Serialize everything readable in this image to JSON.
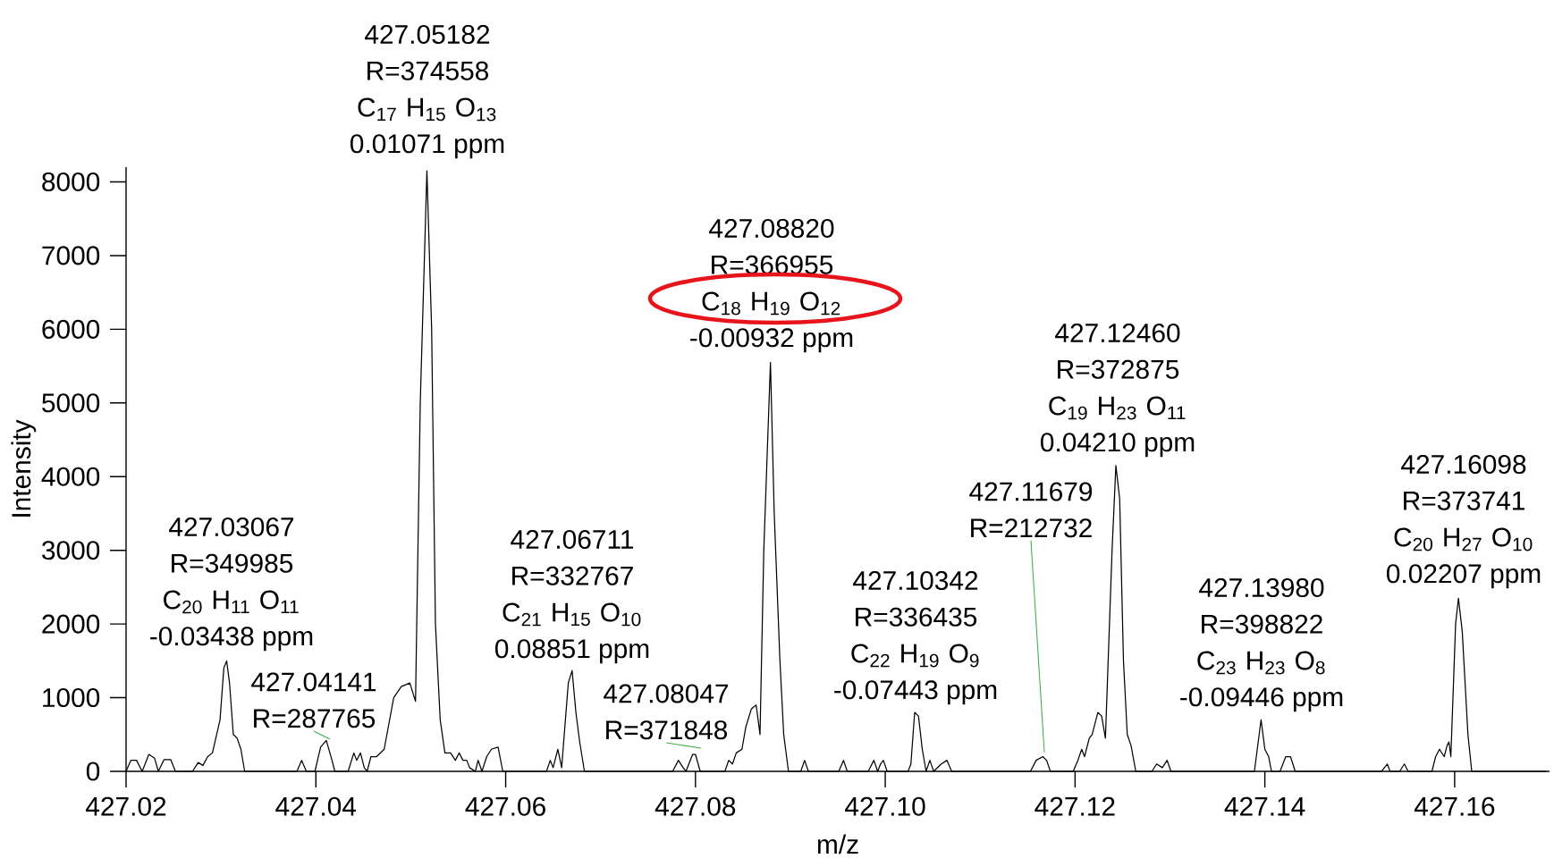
{
  "chart_data": {
    "type": "line",
    "xlabel": "m/z",
    "ylabel": "Intensity",
    "color": "#000000",
    "xlim": [
      427.02,
      427.17
    ],
    "ylim": [
      0,
      8200
    ],
    "xticks": [
      {
        "value": 427.02,
        "label": "427.02"
      },
      {
        "value": 427.04,
        "label": "427.04"
      },
      {
        "value": 427.06,
        "label": "427.06"
      },
      {
        "value": 427.08,
        "label": "427.08"
      },
      {
        "value": 427.1,
        "label": "427.10"
      },
      {
        "value": 427.12,
        "label": "427.12"
      },
      {
        "value": 427.14,
        "label": "427.14"
      },
      {
        "value": 427.16,
        "label": "427.16"
      }
    ],
    "yticks": [
      0,
      1000,
      2000,
      3000,
      4000,
      5000,
      6000,
      7000,
      8000
    ],
    "x": [
      427.02,
      427.0205,
      427.0211,
      427.0217,
      427.0224,
      427.023,
      427.0234,
      427.024,
      427.0247,
      427.0252,
      427.027,
      427.0276,
      427.0281,
      427.0286,
      427.0291,
      427.0299,
      427.0303,
      427.0306,
      427.0309,
      427.0313,
      427.0317,
      427.0321,
      427.0325,
      427.038,
      427.0385,
      427.039,
      427.0399,
      427.0405,
      427.0411,
      427.0417,
      427.042,
      427.0434,
      427.044,
      427.0443,
      427.0447,
      427.0451,
      427.0454,
      427.0458,
      427.0464,
      427.0472,
      427.0482,
      427.049,
      427.0499,
      427.0505,
      427.051,
      427.0517,
      427.0522,
      427.0526,
      427.0531,
      427.0536,
      427.0542,
      427.0547,
      427.0551,
      427.0555,
      427.0559,
      427.0562,
      427.0568,
      427.0571,
      427.0575,
      427.058,
      427.0585,
      427.0592,
      427.0597,
      427.0643,
      427.0647,
      427.065,
      427.0655,
      427.0659,
      427.0666,
      427.067,
      427.0674,
      427.0678,
      427.0683,
      427.0776,
      427.0782,
      427.0787,
      427.079,
      427.0797,
      427.08,
      427.0805,
      427.0831,
      427.0835,
      427.0839,
      427.0843,
      427.0849,
      427.0853,
      427.0859,
      427.0864,
      427.0868,
      427.0872,
      427.0879,
      427.0883,
      427.0889,
      427.0893,
      427.0898,
      427.0911,
      427.0915,
      427.0919,
      427.0951,
      427.0956,
      427.096,
      427.0982,
      427.0988,
      427.0992,
      427.0995,
      427.0998,
      427.1002,
      427.1024,
      427.1027,
      427.1031,
      427.1035,
      427.1039,
      427.1043,
      427.1047,
      427.1051,
      427.1059,
      427.1065,
      427.107,
      427.1153,
      427.1159,
      427.1166,
      427.117,
      427.1174,
      427.1198,
      427.1203,
      427.1207,
      427.121,
      427.1215,
      427.1218,
      427.1224,
      427.1228,
      427.1232,
      427.1239,
      427.1243,
      427.1247,
      427.1251,
      427.1255,
      427.1259,
      427.1264,
      427.1281,
      427.1286,
      427.1292,
      427.1297,
      427.1301,
      427.1389,
      427.1392,
      427.1396,
      427.14,
      427.1404,
      427.1407,
      427.1416,
      427.1422,
      427.1427,
      427.1432,
      427.1523,
      427.1529,
      427.1532,
      427.1542,
      427.1547,
      427.1551,
      427.1576,
      427.158,
      427.1584,
      427.1589,
      427.1592,
      427.1594,
      427.1596,
      427.1601,
      427.1604,
      427.1608,
      427.1614,
      427.1618,
      427.1696
    ],
    "values": [
      0,
      150,
      150,
      0,
      230,
      180,
      0,
      160,
      160,
      0,
      0,
      120,
      80,
      200,
      250,
      700,
      1400,
      1500,
      1200,
      500,
      450,
      300,
      0,
      0,
      150,
      0,
      0,
      330,
      420,
      150,
      0,
      0,
      250,
      150,
      250,
      50,
      0,
      200,
      200,
      300,
      1000,
      1150,
      1200,
      950,
      5000,
      8150,
      6000,
      2000,
      700,
      250,
      250,
      150,
      250,
      150,
      150,
      50,
      0,
      150,
      0,
      200,
      300,
      330,
      0,
      0,
      150,
      50,
      300,
      50,
      1200,
      1370,
      800,
      400,
      0,
      0,
      150,
      50,
      0,
      230,
      230,
      0,
      0,
      150,
      100,
      250,
      300,
      600,
      850,
      900,
      500,
      3000,
      5550,
      3500,
      1500,
      500,
      0,
      0,
      150,
      0,
      0,
      150,
      0,
      0,
      150,
      0,
      100,
      150,
      0,
      0,
      100,
      800,
      750,
      300,
      0,
      150,
      0,
      100,
      150,
      0,
      0,
      150,
      200,
      150,
      0,
      0,
      150,
      300,
      200,
      450,
      500,
      800,
      750,
      450,
      3000,
      4150,
      3700,
      1500,
      500,
      350,
      0,
      0,
      100,
      50,
      150,
      0,
      0,
      300,
      700,
      300,
      200,
      0,
      0,
      200,
      200,
      0,
      0,
      100,
      0,
      0,
      100,
      0,
      0,
      200,
      300,
      200,
      350,
      400,
      200,
      2000,
      2350,
      1900,
      500,
      0,
      0
    ],
    "annotations": [
      "427.03067",
      "R=349985",
      "C$_{20}$ H$_{11}$ O$_{11}$",
      "-0.03438 ppm",
      "427.04141",
      "R=287765",
      "427.05182",
      "R=374558",
      "C$_{17}$ H$_{15}$ O$_{13}$",
      "0.01071 ppm",
      "427.06711",
      "R=332767",
      "C$_{21}$ H$_{15}$ O$_{10}$",
      "0.08851 ppm",
      "427.08047",
      "R=371848",
      "427.08820",
      "R=366955",
      "C$_{18}$ H$_{19}$ O$_{12}$",
      "-0.00932 ppm",
      "427.10342",
      "R=336435",
      "C$_{22}$ H$_{19}$ O$_{9}$",
      "-0.07443 ppm",
      "427.11679",
      "R=212732",
      "427.12460",
      "R=372875",
      "C$_{19}$ H$_{23}$ O$_{11}$",
      "0.04210 ppm",
      "427.13980",
      "R=398822",
      "C$_{23}$ H$_{23}$ O$_{8}$",
      "-0.09446 ppm",
      "427.16098",
      "R=373741",
      "C$_{20}$ H$_{27}$ O$_{10}$",
      "0.02207 ppm"
    ]
  }
}
